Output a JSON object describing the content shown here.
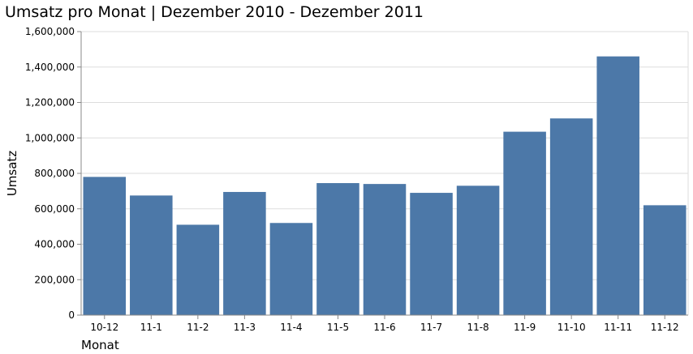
{
  "chart_data": {
    "type": "bar",
    "title": "Umsatz pro Monat | Dezember 2010 - Dezember 2011",
    "xlabel": "Monat",
    "ylabel": "Umsatz",
    "categories": [
      "10-12",
      "11-1",
      "11-2",
      "11-3",
      "11-4",
      "11-5",
      "11-6",
      "11-7",
      "11-8",
      "11-9",
      "11-10",
      "11-11",
      "11-12"
    ],
    "values": [
      780000,
      675000,
      510000,
      695000,
      520000,
      745000,
      740000,
      690000,
      730000,
      1035000,
      1110000,
      1460000,
      620000
    ],
    "ylim": [
      0,
      1600000
    ],
    "yticks": [
      0,
      200000,
      400000,
      600000,
      800000,
      1000000,
      1200000,
      1400000,
      1600000
    ],
    "ytick_labels": [
      "0",
      "200,000",
      "400,000",
      "600,000",
      "800,000",
      "1,000,000",
      "1,200,000",
      "1,400,000",
      "1,600,000"
    ],
    "grid": true,
    "bar_color": "#4c78a8"
  }
}
